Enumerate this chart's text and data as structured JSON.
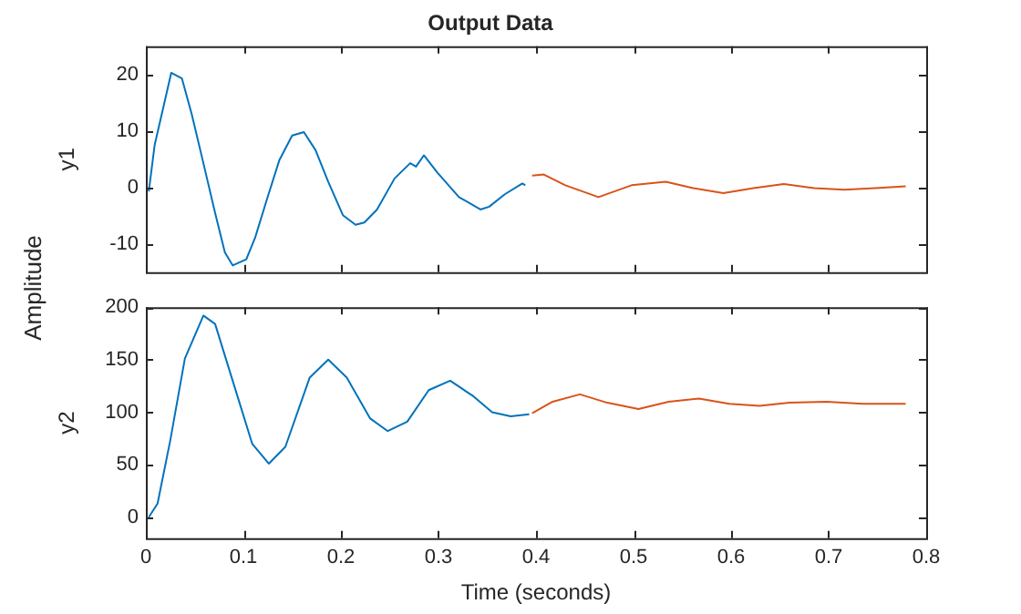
{
  "chart_data": [
    {
      "type": "line",
      "title": "Output Data",
      "ylabel": "y1",
      "annotations": [
        "Amplitude"
      ],
      "tick_labels": "y",
      "xlim": [
        0,
        0.8
      ],
      "xticks": [
        0,
        0.1,
        0.2,
        0.3,
        0.4,
        0.5,
        0.6,
        0.7,
        0.8
      ],
      "ylim": [
        -15,
        25
      ],
      "yticks": [
        -10,
        0,
        10,
        20
      ],
      "series": [
        {
          "color": "#0072bd",
          "x": [
            0.003,
            0.009,
            0.019,
            0.026,
            0.037,
            0.047,
            0.059,
            0.071,
            0.081,
            0.089,
            0.103,
            0.112,
            0.125,
            0.137,
            0.15,
            0.162,
            0.174,
            0.187,
            0.202,
            0.215,
            0.224,
            0.237,
            0.255,
            0.271,
            0.277,
            0.285,
            0.299,
            0.321,
            0.343,
            0.352,
            0.368,
            0.386,
            0.389
          ],
          "values": [
            -0.7,
            7.5,
            15,
            20.3,
            19.3,
            13,
            4.3,
            -4.5,
            -11.5,
            -13.8,
            -12.7,
            -8.9,
            -1.6,
            4.9,
            9.2,
            9.8,
            6.6,
            1,
            -4.9,
            -6.6,
            -6.2,
            -3.9,
            1.6,
            4.3,
            3.7,
            5.7,
            2.6,
            -1.7,
            -3.9,
            -3.4,
            -1.2,
            0.7,
            0.4
          ]
        },
        {
          "color": "#d95319",
          "x": [
            0.396,
            0.408,
            0.43,
            0.464,
            0.498,
            0.533,
            0.561,
            0.592,
            0.623,
            0.654,
            0.685,
            0.716,
            0.748,
            0.779
          ],
          "values": [
            2.1,
            2.3,
            0.4,
            -1.7,
            0.4,
            1.0,
            -0.1,
            -1.0,
            -0.1,
            0.6,
            -0.1,
            -0.4,
            -0.1,
            0.2
          ]
        }
      ]
    },
    {
      "type": "line",
      "xlabel": "Time (seconds)",
      "ylabel": "y2",
      "xlim": [
        0,
        0.8
      ],
      "xticks": [
        0,
        0.1,
        0.2,
        0.3,
        0.4,
        0.5,
        0.6,
        0.7,
        0.8
      ],
      "ylim": [
        -20,
        200
      ],
      "yticks": [
        0,
        50,
        100,
        150,
        200
      ],
      "series": [
        {
          "color": "#0072bd",
          "x": [
            0.003,
            0.012,
            0.025,
            0.04,
            0.059,
            0.071,
            0.09,
            0.109,
            0.126,
            0.143,
            0.168,
            0.187,
            0.206,
            0.23,
            0.248,
            0.268,
            0.29,
            0.312,
            0.336,
            0.355,
            0.374,
            0.393
          ],
          "values": [
            0,
            13,
            73,
            151,
            192,
            184,
            127,
            70,
            51,
            67,
            133,
            150,
            133,
            94,
            82,
            91,
            121,
            130,
            115,
            100,
            96,
            98
          ]
        },
        {
          "color": "#d95319",
          "x": [
            0.396,
            0.417,
            0.445,
            0.473,
            0.505,
            0.536,
            0.567,
            0.598,
            0.629,
            0.66,
            0.698,
            0.735,
            0.779
          ],
          "values": [
            99,
            110,
            117,
            109,
            103,
            110,
            113,
            108,
            106,
            109,
            110,
            108,
            108
          ]
        }
      ]
    }
  ]
}
